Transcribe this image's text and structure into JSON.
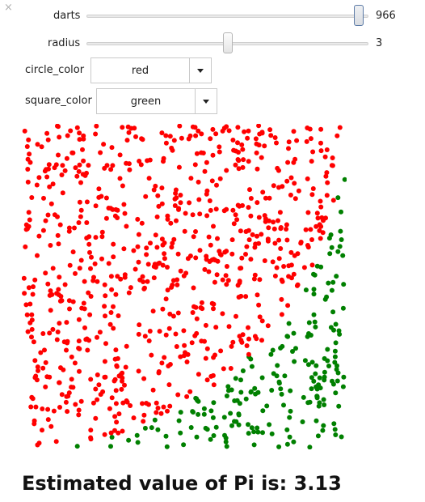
{
  "close_glyph": "×",
  "controls": {
    "darts": {
      "label": "darts",
      "value": "966",
      "min": 1,
      "max": 1000,
      "fraction": 0.966
    },
    "radius": {
      "label": "radius",
      "value": "3",
      "min": 1,
      "max": 5,
      "fraction": 0.5
    },
    "circle_color": {
      "label": "circle_color",
      "value": "red"
    },
    "square_color": {
      "label": "square_color",
      "value": "green"
    }
  },
  "plot": {
    "num_darts": 966,
    "inside_color": "#ff0000",
    "outside_color": "#008000",
    "x_range": [
      0,
      1
    ],
    "y_range": [
      0,
      1
    ]
  },
  "result": "Estimated value of Pi is: 3.13"
}
